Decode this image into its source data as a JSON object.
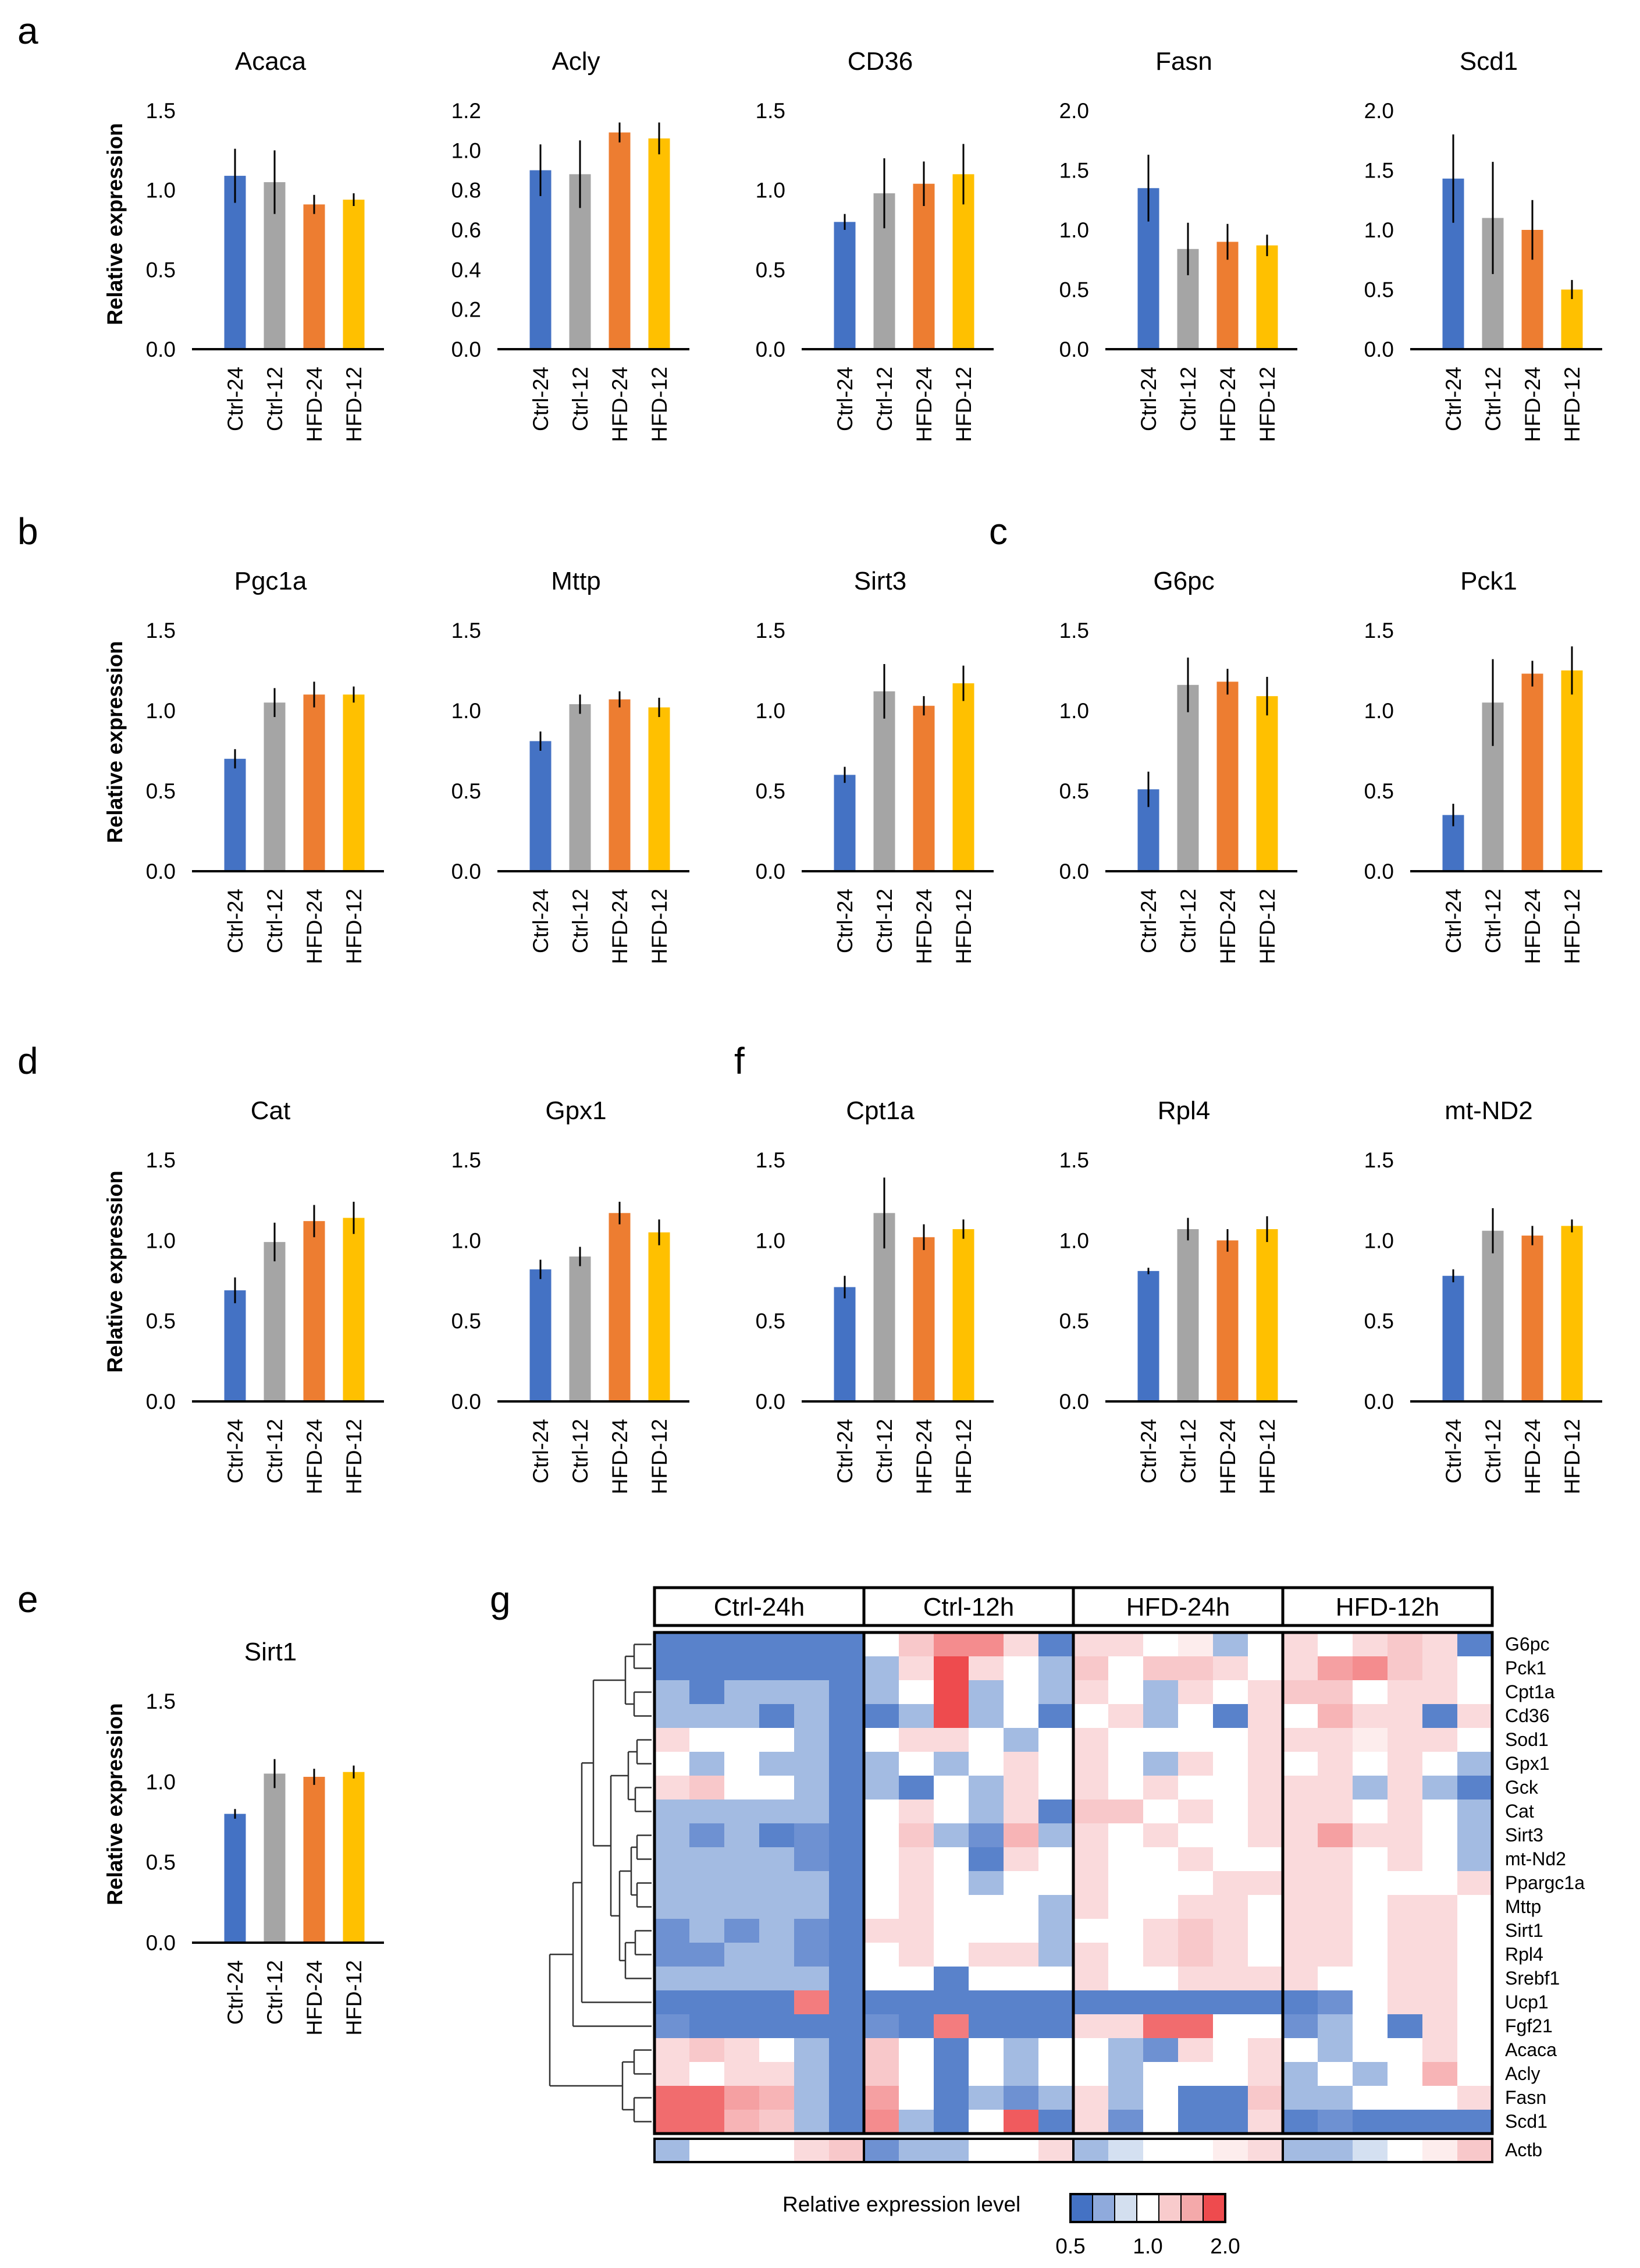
{
  "panel_labels": [
    "a",
    "b",
    "c",
    "d",
    "e",
    "f",
    "g"
  ],
  "common": {
    "ylabel": "Relative expression",
    "categories": [
      "Ctrl-24",
      "Ctrl-12",
      "HFD-24",
      "HFD-12"
    ],
    "bar_colors": [
      "#4472C4",
      "#A5A5A5",
      "#ED7D31",
      "#FFC000"
    ]
  },
  "chart_data": [
    {
      "type": "bar",
      "title": "Acaca",
      "categories": [
        "Ctrl-24",
        "Ctrl-12",
        "HFD-24",
        "HFD-12"
      ],
      "values": [
        1.09,
        1.05,
        0.91,
        0.94
      ],
      "errors": [
        0.17,
        0.2,
        0.06,
        0.04
      ],
      "ylim": [
        0,
        1.5
      ],
      "yticks": [
        "0.0",
        "0.5",
        "1.0",
        "1.5"
      ]
    },
    {
      "type": "bar",
      "title": "Acly",
      "categories": [
        "Ctrl-24",
        "Ctrl-12",
        "HFD-24",
        "HFD-12"
      ],
      "values": [
        0.9,
        0.88,
        1.09,
        1.06
      ],
      "errors": [
        0.13,
        0.17,
        0.05,
        0.08
      ],
      "ylim": [
        0,
        1.2
      ],
      "yticks": [
        "0.0",
        "0.2",
        "0.4",
        "0.6",
        "0.8",
        "1.0",
        "1.2"
      ]
    },
    {
      "type": "bar",
      "title": "CD36",
      "categories": [
        "Ctrl-24",
        "Ctrl-12",
        "HFD-24",
        "HFD-12"
      ],
      "values": [
        0.8,
        0.98,
        1.04,
        1.1
      ],
      "errors": [
        0.05,
        0.22,
        0.14,
        0.19
      ],
      "ylim": [
        0,
        1.5
      ],
      "yticks": [
        "0.0",
        "0.5",
        "1.0",
        "1.5"
      ]
    },
    {
      "type": "bar",
      "title": "Fasn",
      "categories": [
        "Ctrl-24",
        "Ctrl-12",
        "HFD-24",
        "HFD-12"
      ],
      "values": [
        1.35,
        0.84,
        0.9,
        0.87
      ],
      "errors": [
        0.28,
        0.22,
        0.15,
        0.09
      ],
      "ylim": [
        0,
        2
      ],
      "yticks": [
        "0.0",
        "0.5",
        "1.0",
        "1.5",
        "2.0"
      ]
    },
    {
      "type": "bar",
      "title": "Scd1",
      "categories": [
        "Ctrl-24",
        "Ctrl-12",
        "HFD-24",
        "HFD-12"
      ],
      "values": [
        1.43,
        1.1,
        1.0,
        0.5
      ],
      "errors": [
        0.37,
        0.47,
        0.25,
        0.08
      ],
      "ylim": [
        0,
        2
      ],
      "yticks": [
        "0.0",
        "0.5",
        "1.0",
        "1.5",
        "2.0"
      ]
    },
    {
      "type": "bar",
      "title": "Pgc1a",
      "categories": [
        "Ctrl-24",
        "Ctrl-12",
        "HFD-24",
        "HFD-12"
      ],
      "values": [
        0.7,
        1.05,
        1.1,
        1.1
      ],
      "errors": [
        0.06,
        0.09,
        0.08,
        0.05
      ],
      "ylim": [
        0,
        1.5
      ],
      "yticks": [
        "0.0",
        "0.5",
        "1.0",
        "1.5"
      ]
    },
    {
      "type": "bar",
      "title": "Mttp",
      "categories": [
        "Ctrl-24",
        "Ctrl-12",
        "HFD-24",
        "HFD-12"
      ],
      "values": [
        0.81,
        1.04,
        1.07,
        1.02
      ],
      "errors": [
        0.06,
        0.06,
        0.05,
        0.06
      ],
      "ylim": [
        0,
        1.5
      ],
      "yticks": [
        "0.0",
        "0.5",
        "1.0",
        "1.5"
      ]
    },
    {
      "type": "bar",
      "title": "Sirt3",
      "categories": [
        "Ctrl-24",
        "Ctrl-12",
        "HFD-24",
        "HFD-12"
      ],
      "values": [
        0.6,
        1.12,
        1.03,
        1.17
      ],
      "errors": [
        0.05,
        0.17,
        0.06,
        0.11
      ],
      "ylim": [
        0,
        1.5
      ],
      "yticks": [
        "0.0",
        "0.5",
        "1.0",
        "1.5"
      ]
    },
    {
      "type": "bar",
      "title": "G6pc",
      "categories": [
        "Ctrl-24",
        "Ctrl-12",
        "HFD-24",
        "HFD-12"
      ],
      "values": [
        0.51,
        1.16,
        1.18,
        1.09
      ],
      "errors": [
        0.11,
        0.17,
        0.08,
        0.12
      ],
      "ylim": [
        0,
        1.5
      ],
      "yticks": [
        "0.0",
        "0.5",
        "1.0",
        "1.5"
      ]
    },
    {
      "type": "bar",
      "title": "Pck1",
      "categories": [
        "Ctrl-24",
        "Ctrl-12",
        "HFD-24",
        "HFD-12"
      ],
      "values": [
        0.35,
        1.05,
        1.23,
        1.25
      ],
      "errors": [
        0.07,
        0.27,
        0.08,
        0.15
      ],
      "ylim": [
        0,
        1.5
      ],
      "yticks": [
        "0.0",
        "0.5",
        "1.0",
        "1.5"
      ]
    },
    {
      "type": "bar",
      "title": "Cat",
      "categories": [
        "Ctrl-24",
        "Ctrl-12",
        "HFD-24",
        "HFD-12"
      ],
      "values": [
        0.69,
        0.99,
        1.12,
        1.14
      ],
      "errors": [
        0.08,
        0.12,
        0.1,
        0.1
      ],
      "ylim": [
        0,
        1.5
      ],
      "yticks": [
        "0.0",
        "0.5",
        "1.0",
        "1.5"
      ]
    },
    {
      "type": "bar",
      "title": "Gpx1",
      "categories": [
        "Ctrl-24",
        "Ctrl-12",
        "HFD-24",
        "HFD-12"
      ],
      "values": [
        0.82,
        0.9,
        1.17,
        1.05
      ],
      "errors": [
        0.06,
        0.06,
        0.07,
        0.08
      ],
      "ylim": [
        0,
        1.5
      ],
      "yticks": [
        "0.0",
        "0.5",
        "1.0",
        "1.5"
      ]
    },
    {
      "type": "bar",
      "title": "Sirt1",
      "categories": [
        "Ctrl-24",
        "Ctrl-12",
        "HFD-24",
        "HFD-12"
      ],
      "values": [
        0.8,
        1.05,
        1.03,
        1.06
      ],
      "errors": [
        0.03,
        0.09,
        0.05,
        0.04
      ],
      "ylim": [
        0,
        1.5
      ],
      "yticks": [
        "0.0",
        "0.5",
        "1.0",
        "1.5"
      ]
    },
    {
      "type": "bar",
      "title": "Cpt1a",
      "categories": [
        "Ctrl-24",
        "Ctrl-12",
        "HFD-24",
        "HFD-12"
      ],
      "values": [
        0.71,
        1.17,
        1.02,
        1.07
      ],
      "errors": [
        0.07,
        0.22,
        0.08,
        0.06
      ],
      "ylim": [
        0,
        1.5
      ],
      "yticks": [
        "0.0",
        "0.5",
        "1.0",
        "1.5"
      ]
    },
    {
      "type": "bar",
      "title": "Rpl4",
      "categories": [
        "Ctrl-24",
        "Ctrl-12",
        "HFD-24",
        "HFD-12"
      ],
      "values": [
        0.81,
        1.07,
        1.0,
        1.07
      ],
      "errors": [
        0.02,
        0.07,
        0.07,
        0.08
      ],
      "ylim": [
        0,
        1.5
      ],
      "yticks": [
        "0.0",
        "0.5",
        "1.0",
        "1.5"
      ]
    },
    {
      "type": "bar",
      "title": "mt-ND2",
      "categories": [
        "Ctrl-24",
        "Ctrl-12",
        "HFD-24",
        "HFD-12"
      ],
      "values": [
        0.78,
        1.06,
        1.03,
        1.09
      ],
      "errors": [
        0.04,
        0.14,
        0.06,
        0.04
      ],
      "ylim": [
        0,
        1.5
      ],
      "yticks": [
        "0.0",
        "0.5",
        "1.0",
        "1.5"
      ]
    },
    {
      "type": "heatmap",
      "groups": [
        "Ctrl-24h",
        "Ctrl-12h",
        "HFD-24h",
        "HFD-12h"
      ],
      "columns_per_group": 6,
      "rows": [
        "G6pc",
        "Pck1",
        "Cpt1a",
        "Cd36",
        "Sod1",
        "Gpx1",
        "Gck",
        "Cat",
        "Sirt3",
        "mt-Nd2",
        "Ppargc1a",
        "Mttp",
        "Sirt1",
        "Rpl4",
        "Srebf1",
        "Ucp1",
        "Fgf21",
        "Acaca",
        "Acly",
        "Fasn",
        "Scd1"
      ],
      "values": [
        [
          0.6,
          0.6,
          0.6,
          0.6,
          0.6,
          0.6,
          1.0,
          1.3,
          1.6,
          1.6,
          1.2,
          0.6,
          1.2,
          1.2,
          1.0,
          1.1,
          0.8,
          1.0,
          1.2,
          1.0,
          1.2,
          1.3,
          1.2,
          0.6
        ],
        [
          0.6,
          0.6,
          0.6,
          0.6,
          0.6,
          0.6,
          0.8,
          1.2,
          2.0,
          1.2,
          1.0,
          0.8,
          1.3,
          1.0,
          1.3,
          1.3,
          1.2,
          1.0,
          1.2,
          1.5,
          1.6,
          1.3,
          1.2,
          1.0
        ],
        [
          0.8,
          0.6,
          0.8,
          0.8,
          0.8,
          0.6,
          0.8,
          1.0,
          2.0,
          0.8,
          1.0,
          0.8,
          1.2,
          1.0,
          0.8,
          1.2,
          1.0,
          1.2,
          1.3,
          1.3,
          1.0,
          1.2,
          1.2,
          1.0
        ],
        [
          0.8,
          0.8,
          0.8,
          0.6,
          0.8,
          0.6,
          0.6,
          0.8,
          2.0,
          0.8,
          1.0,
          0.6,
          1.0,
          1.2,
          0.8,
          1.0,
          0.6,
          1.2,
          1.0,
          1.4,
          1.2,
          1.2,
          0.6,
          1.2
        ],
        [
          1.2,
          1.0,
          1.0,
          1.0,
          0.8,
          0.6,
          1.0,
          1.2,
          1.2,
          1.0,
          0.8,
          1.0,
          1.2,
          1.0,
          1.0,
          1.0,
          1.0,
          1.2,
          1.2,
          1.2,
          1.1,
          1.2,
          1.2,
          1.0
        ],
        [
          1.0,
          0.8,
          1.0,
          0.8,
          0.8,
          0.6,
          0.8,
          1.0,
          0.8,
          1.0,
          1.2,
          1.0,
          1.2,
          1.0,
          0.8,
          1.2,
          1.0,
          1.2,
          1.0,
          1.2,
          1.0,
          1.2,
          1.0,
          0.8
        ],
        [
          1.2,
          1.3,
          1.0,
          1.0,
          0.8,
          0.6,
          0.8,
          0.6,
          1.0,
          0.8,
          1.2,
          1.0,
          1.2,
          1.0,
          1.2,
          1.0,
          1.0,
          1.2,
          1.2,
          1.2,
          0.8,
          1.2,
          0.8,
          0.6
        ],
        [
          0.8,
          0.8,
          0.8,
          0.8,
          0.8,
          0.6,
          1.0,
          1.2,
          1.0,
          0.8,
          1.2,
          0.6,
          1.3,
          1.3,
          1.0,
          1.2,
          1.0,
          1.2,
          1.2,
          1.2,
          1.0,
          1.2,
          1.0,
          0.8
        ],
        [
          0.8,
          0.7,
          0.8,
          0.6,
          0.7,
          0.6,
          1.0,
          1.3,
          0.8,
          0.7,
          1.4,
          0.8,
          1.2,
          1.0,
          1.2,
          1.0,
          1.0,
          1.2,
          1.2,
          1.5,
          1.2,
          1.2,
          1.0,
          0.8
        ],
        [
          0.8,
          0.8,
          0.8,
          0.8,
          0.7,
          0.6,
          1.0,
          1.2,
          1.0,
          0.6,
          1.2,
          1.0,
          1.2,
          1.0,
          1.0,
          1.2,
          1.0,
          1.0,
          1.2,
          1.2,
          1.0,
          1.2,
          1.0,
          0.8
        ],
        [
          0.8,
          0.8,
          0.8,
          0.8,
          0.8,
          0.6,
          1.0,
          1.2,
          1.0,
          0.8,
          1.0,
          1.0,
          1.2,
          1.0,
          1.0,
          1.0,
          1.2,
          1.2,
          1.2,
          1.2,
          1.0,
          1.0,
          1.0,
          1.2
        ],
        [
          0.8,
          0.8,
          0.8,
          0.8,
          0.8,
          0.6,
          1.0,
          1.2,
          1.0,
          1.0,
          1.0,
          0.8,
          1.2,
          1.0,
          1.0,
          1.2,
          1.2,
          1.0,
          1.2,
          1.2,
          1.0,
          1.2,
          1.2,
          1.0
        ],
        [
          0.7,
          0.8,
          0.7,
          0.8,
          0.7,
          0.6,
          1.2,
          1.2,
          1.0,
          1.0,
          1.0,
          0.8,
          1.0,
          1.0,
          1.2,
          1.3,
          1.2,
          1.0,
          1.2,
          1.2,
          1.0,
          1.2,
          1.2,
          1.0
        ],
        [
          0.7,
          0.7,
          0.8,
          0.8,
          0.7,
          0.6,
          1.0,
          1.2,
          1.0,
          1.2,
          1.2,
          0.8,
          1.2,
          1.0,
          1.2,
          1.3,
          1.2,
          1.0,
          1.2,
          1.2,
          1.0,
          1.2,
          1.2,
          1.0
        ],
        [
          0.8,
          0.8,
          0.8,
          0.8,
          0.8,
          0.6,
          1.0,
          1.0,
          0.6,
          1.0,
          1.0,
          1.0,
          1.2,
          1.0,
          1.0,
          1.2,
          1.2,
          1.2,
          1.2,
          1.0,
          1.0,
          1.2,
          1.2,
          1.0
        ],
        [
          0.6,
          0.6,
          0.6,
          0.6,
          1.7,
          0.6,
          0.6,
          0.6,
          0.6,
          0.6,
          0.6,
          0.6,
          0.6,
          0.6,
          0.6,
          0.6,
          0.6,
          0.6,
          0.6,
          0.7,
          1.0,
          1.2,
          1.2,
          1.0
        ],
        [
          0.7,
          0.6,
          0.6,
          0.6,
          0.6,
          0.6,
          0.7,
          0.6,
          1.7,
          0.6,
          0.6,
          0.6,
          1.2,
          1.2,
          1.8,
          1.8,
          1.0,
          1.0,
          0.7,
          0.8,
          1.0,
          0.6,
          1.2,
          1.0
        ],
        [
          1.2,
          1.3,
          1.2,
          1.0,
          0.8,
          0.6,
          1.3,
          1.0,
          0.6,
          1.0,
          0.8,
          1.0,
          1.0,
          0.8,
          0.7,
          1.2,
          1.0,
          1.2,
          1.0,
          0.8,
          1.0,
          1.0,
          1.2,
          1.0
        ],
        [
          1.2,
          1.0,
          1.2,
          1.2,
          0.8,
          0.6,
          1.3,
          1.0,
          0.6,
          1.0,
          0.8,
          1.0,
          1.0,
          0.8,
          1.0,
          1.0,
          1.0,
          1.2,
          0.8,
          1.0,
          0.8,
          1.0,
          1.4,
          1.0
        ],
        [
          1.8,
          1.8,
          1.5,
          1.4,
          0.8,
          0.6,
          1.5,
          1.0,
          0.6,
          0.8,
          0.7,
          0.8,
          1.2,
          0.8,
          1.0,
          0.6,
          0.6,
          1.3,
          0.8,
          0.8,
          1.0,
          1.0,
          1.0,
          1.2
        ],
        [
          1.8,
          1.8,
          1.4,
          1.3,
          0.8,
          0.6,
          1.6,
          0.8,
          0.6,
          1.0,
          1.9,
          0.6,
          1.2,
          0.7,
          1.0,
          0.6,
          0.6,
          1.2,
          0.6,
          0.7,
          0.6,
          0.6,
          0.6,
          0.6
        ]
      ],
      "reference_row": {
        "name": "Actb",
        "values": [
          0.8,
          1.0,
          1.0,
          1.0,
          1.2,
          1.3,
          0.7,
          0.8,
          0.8,
          1.0,
          1.0,
          1.2,
          0.8,
          0.9,
          1.0,
          1.0,
          1.1,
          1.2,
          0.8,
          0.8,
          0.9,
          1.0,
          1.1,
          1.3
        ]
      },
      "legend": {
        "title": "Relative expression level",
        "tick_labels": [
          "0.5",
          "1.0",
          "2.0"
        ],
        "colors": [
          "#4472C4",
          "#8FAADC",
          "#D3DFEF",
          "#FFFFFF",
          "#F8CBCC",
          "#F4A9AA",
          "#EE4B4E"
        ]
      }
    }
  ]
}
